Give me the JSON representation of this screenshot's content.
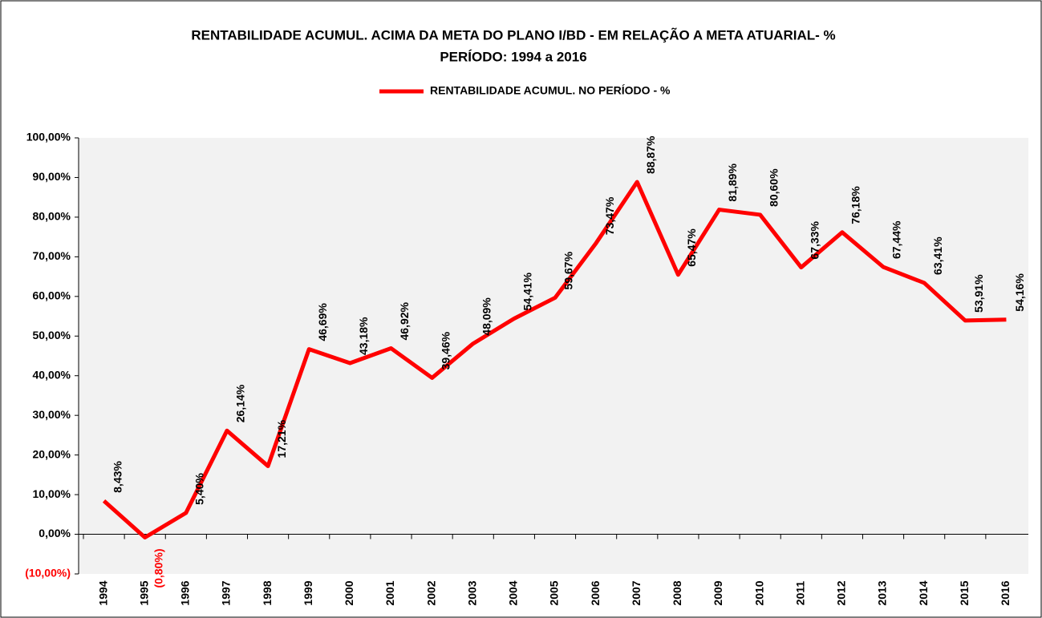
{
  "chart_data": {
    "type": "line",
    "title": "RENTABILIDADE ACUMUL. ACIMA DA META DO PLANO I/BD - EM RELAÇÃO A META ATUARIAL- %",
    "subtitle": "PERÍODO: 1994 a 2016",
    "categories": [
      "1994",
      "1995",
      "1996",
      "1997",
      "1998",
      "1999",
      "2000",
      "2001",
      "2002",
      "2003",
      "2004",
      "2005",
      "2006",
      "2007",
      "2008",
      "2009",
      "2010",
      "2011",
      "2012",
      "2013",
      "2014",
      "2015",
      "2016"
    ],
    "series": [
      {
        "name": "RENTABILIDADE ACUMUL. NO PERÍODO - %",
        "color": "#ff0000",
        "values": [
          8.43,
          -0.8,
          5.4,
          26.14,
          17.21,
          46.69,
          43.18,
          46.92,
          39.46,
          48.09,
          54.41,
          59.67,
          73.47,
          88.87,
          65.47,
          81.89,
          80.6,
          67.33,
          76.18,
          67.44,
          63.41,
          53.91,
          54.16
        ],
        "value_labels": [
          "8,43%",
          "(0,80%)",
          "5,40%",
          "26,14%",
          "17,21%",
          "46,69%",
          "43,18%",
          "46,92%",
          "39,46%",
          "48,09%",
          "54,41%",
          "59,67%",
          "73,47%",
          "88,87%",
          "65,47%",
          "81,89%",
          "80,60%",
          "67,33%",
          "76,18%",
          "67,44%",
          "63,41%",
          "53,91%",
          "54,16%"
        ]
      }
    ],
    "negative_color": "#ff0000",
    "ylim": [
      -10,
      100
    ],
    "yticks": [
      {
        "value": -10,
        "label": "(10,00%)"
      },
      {
        "value": 0,
        "label": "0,00%"
      },
      {
        "value": 10,
        "label": "10,00%"
      },
      {
        "value": 20,
        "label": "20,00%"
      },
      {
        "value": 30,
        "label": "30,00%"
      },
      {
        "value": 40,
        "label": "40,00%"
      },
      {
        "value": 50,
        "label": "50,00%"
      },
      {
        "value": 60,
        "label": "60,00%"
      },
      {
        "value": 70,
        "label": "70,00%"
      },
      {
        "value": 80,
        "label": "80,00%"
      },
      {
        "value": 90,
        "label": "90,00%"
      },
      {
        "value": 100,
        "label": "100,00%"
      }
    ],
    "grid": false
  }
}
